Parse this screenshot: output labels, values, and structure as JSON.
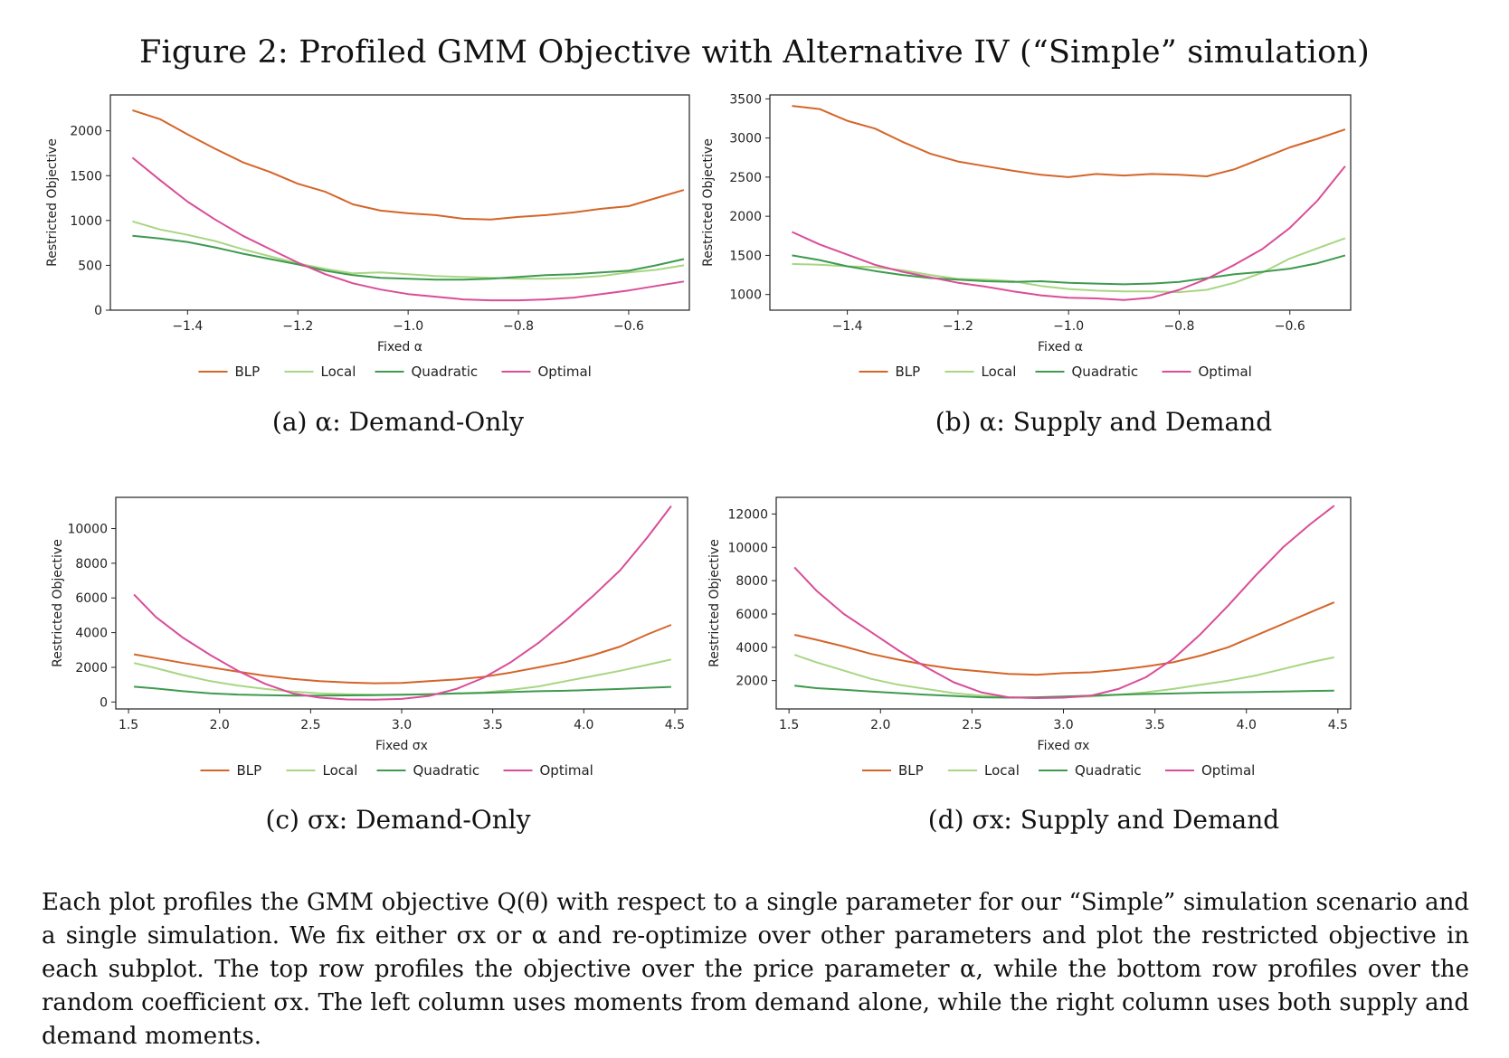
{
  "figure": {
    "title": "Figure 2: Profiled GMM Objective with Alternative IV (“Simple” simulation)",
    "caption": "Each plot profiles the GMM objective Q(θ) with respect to a single parameter for our “Simple” simulation scenario and a single simulation. We fix either σx or α and re-optimize over other parameters and plot the restricted objective in each subplot. The top row profiles the objective over the price parameter α, while the bottom row profiles over the random coefficient σx. The left column uses moments from demand alone, while the right column uses both supply and demand moments."
  },
  "colors": {
    "BLP": "#d4652a",
    "Local": "#a8d683",
    "Quadratic": "#3f9a4f",
    "Optimal": "#d94d98"
  },
  "chart_data": [
    {
      "type": "line",
      "subcaption": "(a) α: Demand-Only",
      "xlabel": "Fixed α",
      "ylabel": "Restricted Objective",
      "xlim": [
        -1.54,
        -0.49
      ],
      "ylim": [
        0,
        2400
      ],
      "xticks": [
        -1.4,
        -1.2,
        -1.0,
        -0.8,
        -0.6
      ],
      "xtick_labels": [
        "−1.4",
        "−1.2",
        "−1.0",
        "−0.8",
        "−0.6"
      ],
      "yticks": [
        0,
        500,
        1000,
        1500,
        2000
      ],
      "ytick_labels": [
        "0",
        "500",
        "1000",
        "1500",
        "2000"
      ],
      "legend": "bottom-center",
      "x": [
        -1.5,
        -1.45,
        -1.4,
        -1.35,
        -1.3,
        -1.25,
        -1.2,
        -1.15,
        -1.1,
        -1.05,
        -1.0,
        -0.95,
        -0.9,
        -0.85,
        -0.8,
        -0.75,
        -0.7,
        -0.65,
        -0.6,
        -0.55,
        -0.5
      ],
      "series": [
        {
          "name": "BLP",
          "values": [
            2230,
            2130,
            1960,
            1800,
            1650,
            1540,
            1410,
            1320,
            1180,
            1110,
            1080,
            1060,
            1020,
            1010,
            1040,
            1060,
            1090,
            1130,
            1160,
            1250,
            1340
          ]
        },
        {
          "name": "Local",
          "values": [
            990,
            900,
            840,
            770,
            680,
            600,
            520,
            460,
            410,
            420,
            400,
            380,
            370,
            360,
            350,
            350,
            360,
            380,
            420,
            450,
            500
          ]
        },
        {
          "name": "Quadratic",
          "values": [
            830,
            800,
            760,
            700,
            630,
            570,
            510,
            440,
            390,
            360,
            350,
            340,
            340,
            350,
            370,
            390,
            400,
            420,
            440,
            500,
            570
          ]
        },
        {
          "name": "Optimal",
          "values": [
            1700,
            1450,
            1210,
            1010,
            830,
            680,
            530,
            400,
            300,
            230,
            180,
            150,
            120,
            110,
            110,
            120,
            140,
            180,
            220,
            270,
            320
          ]
        }
      ]
    },
    {
      "type": "line",
      "subcaption": "(b) α: Supply and Demand",
      "xlabel": "Fixed α",
      "ylabel": "Restricted Objective",
      "xlim": [
        -1.54,
        -0.49
      ],
      "ylim": [
        800,
        3550
      ],
      "xticks": [
        -1.4,
        -1.2,
        -1.0,
        -0.8,
        -0.6
      ],
      "xtick_labels": [
        "−1.4",
        "−1.2",
        "−1.0",
        "−0.8",
        "−0.6"
      ],
      "yticks": [
        1000,
        1500,
        2000,
        2500,
        3000,
        3500
      ],
      "ytick_labels": [
        "1000",
        "1500",
        "2000",
        "2500",
        "3000",
        "3500"
      ],
      "legend": "bottom-center",
      "x": [
        -1.5,
        -1.45,
        -1.4,
        -1.35,
        -1.3,
        -1.25,
        -1.2,
        -1.15,
        -1.1,
        -1.05,
        -1.0,
        -0.95,
        -0.9,
        -0.85,
        -0.8,
        -0.75,
        -0.7,
        -0.65,
        -0.6,
        -0.55,
        -0.5
      ],
      "series": [
        {
          "name": "BLP",
          "values": [
            3410,
            3370,
            3220,
            3120,
            2950,
            2800,
            2700,
            2640,
            2580,
            2530,
            2500,
            2540,
            2520,
            2540,
            2530,
            2510,
            2600,
            2740,
            2880,
            2990,
            3110
          ]
        },
        {
          "name": "Local",
          "values": [
            1390,
            1380,
            1360,
            1350,
            1310,
            1250,
            1200,
            1190,
            1170,
            1110,
            1070,
            1050,
            1040,
            1040,
            1030,
            1060,
            1150,
            1280,
            1460,
            1590,
            1720
          ]
        },
        {
          "name": "Quadratic",
          "values": [
            1500,
            1440,
            1360,
            1300,
            1250,
            1210,
            1190,
            1170,
            1160,
            1170,
            1150,
            1140,
            1130,
            1140,
            1160,
            1210,
            1260,
            1290,
            1330,
            1400,
            1500
          ]
        },
        {
          "name": "Optimal",
          "values": [
            1800,
            1640,
            1510,
            1380,
            1290,
            1220,
            1150,
            1100,
            1040,
            990,
            960,
            950,
            930,
            960,
            1060,
            1200,
            1380,
            1580,
            1850,
            2200,
            2640
          ]
        }
      ]
    },
    {
      "type": "line",
      "subcaption": "(c) σx: Demand-Only",
      "xlabel": "Fixed σx",
      "ylabel": "Restricted Objective",
      "xlim": [
        1.43,
        4.57
      ],
      "ylim": [
        -400,
        11800
      ],
      "xticks": [
        1.5,
        2.0,
        2.5,
        3.0,
        3.5,
        4.0,
        4.5
      ],
      "xtick_labels": [
        "1.5",
        "2.0",
        "2.5",
        "3.0",
        "3.5",
        "4.0",
        "4.5"
      ],
      "yticks": [
        0,
        2000,
        4000,
        6000,
        8000,
        10000
      ],
      "ytick_labels": [
        "0",
        "2000",
        "4000",
        "6000",
        "8000",
        "10000"
      ],
      "legend": "bottom-center",
      "x": [
        1.53,
        1.65,
        1.8,
        1.95,
        2.1,
        2.25,
        2.4,
        2.55,
        2.7,
        2.85,
        3.0,
        3.15,
        3.3,
        3.45,
        3.6,
        3.75,
        3.9,
        4.05,
        4.2,
        4.35,
        4.48
      ],
      "series": [
        {
          "name": "BLP",
          "values": [
            2750,
            2530,
            2250,
            2000,
            1750,
            1520,
            1330,
            1200,
            1130,
            1080,
            1100,
            1200,
            1300,
            1450,
            1700,
            2000,
            2300,
            2700,
            3200,
            3900,
            4450
          ]
        },
        {
          "name": "Local",
          "values": [
            2250,
            1950,
            1550,
            1200,
            950,
            750,
            600,
            500,
            450,
            420,
            420,
            450,
            500,
            550,
            700,
            900,
            1200,
            1500,
            1800,
            2150,
            2450
          ]
        },
        {
          "name": "Quadratic",
          "values": [
            880,
            780,
            620,
            500,
            430,
            390,
            370,
            370,
            380,
            400,
            420,
            450,
            490,
            530,
            580,
            620,
            650,
            700,
            750,
            820,
            870
          ]
        },
        {
          "name": "Optimal",
          "values": [
            6200,
            4900,
            3700,
            2700,
            1800,
            1050,
            500,
            250,
            150,
            130,
            180,
            350,
            750,
            1400,
            2300,
            3400,
            4700,
            6100,
            7600,
            9500,
            11300
          ]
        }
      ]
    },
    {
      "type": "line",
      "subcaption": "(d) σx: Supply and Demand",
      "xlabel": "Fixed σx",
      "ylabel": "Restricted Objective",
      "xlim": [
        1.43,
        4.57
      ],
      "ylim": [
        300,
        13000
      ],
      "xticks": [
        1.5,
        2.0,
        2.5,
        3.0,
        3.5,
        4.0,
        4.5
      ],
      "xtick_labels": [
        "1.5",
        "2.0",
        "2.5",
        "3.0",
        "3.5",
        "4.0",
        "4.5"
      ],
      "yticks": [
        2000,
        4000,
        6000,
        8000,
        10000,
        12000
      ],
      "ytick_labels": [
        "2000",
        "4000",
        "6000",
        "8000",
        "10000",
        "12000"
      ],
      "legend": "bottom-center",
      "x": [
        1.53,
        1.65,
        1.8,
        1.95,
        2.1,
        2.25,
        2.4,
        2.55,
        2.7,
        2.85,
        3.0,
        3.15,
        3.3,
        3.45,
        3.6,
        3.75,
        3.9,
        4.05,
        4.2,
        4.35,
        4.48
      ],
      "series": [
        {
          "name": "BLP",
          "values": [
            4750,
            4450,
            4050,
            3600,
            3250,
            2950,
            2700,
            2550,
            2400,
            2350,
            2450,
            2500,
            2650,
            2850,
            3100,
            3500,
            4000,
            4700,
            5400,
            6100,
            6700
          ]
        },
        {
          "name": "Local",
          "values": [
            3550,
            3100,
            2600,
            2100,
            1750,
            1500,
            1250,
            1100,
            1000,
            980,
            1000,
            1050,
            1150,
            1300,
            1500,
            1750,
            2000,
            2300,
            2700,
            3100,
            3400
          ]
        },
        {
          "name": "Quadratic",
          "values": [
            1700,
            1550,
            1450,
            1350,
            1250,
            1150,
            1080,
            1000,
            980,
            1000,
            1050,
            1100,
            1150,
            1200,
            1230,
            1270,
            1300,
            1320,
            1350,
            1380,
            1400
          ]
        },
        {
          "name": "Optimal",
          "values": [
            8800,
            7400,
            6000,
            4900,
            3800,
            2800,
            1900,
            1300,
            1000,
            950,
            980,
            1100,
            1500,
            2200,
            3300,
            4800,
            6500,
            8300,
            10000,
            11400,
            12500
          ]
        }
      ]
    }
  ]
}
